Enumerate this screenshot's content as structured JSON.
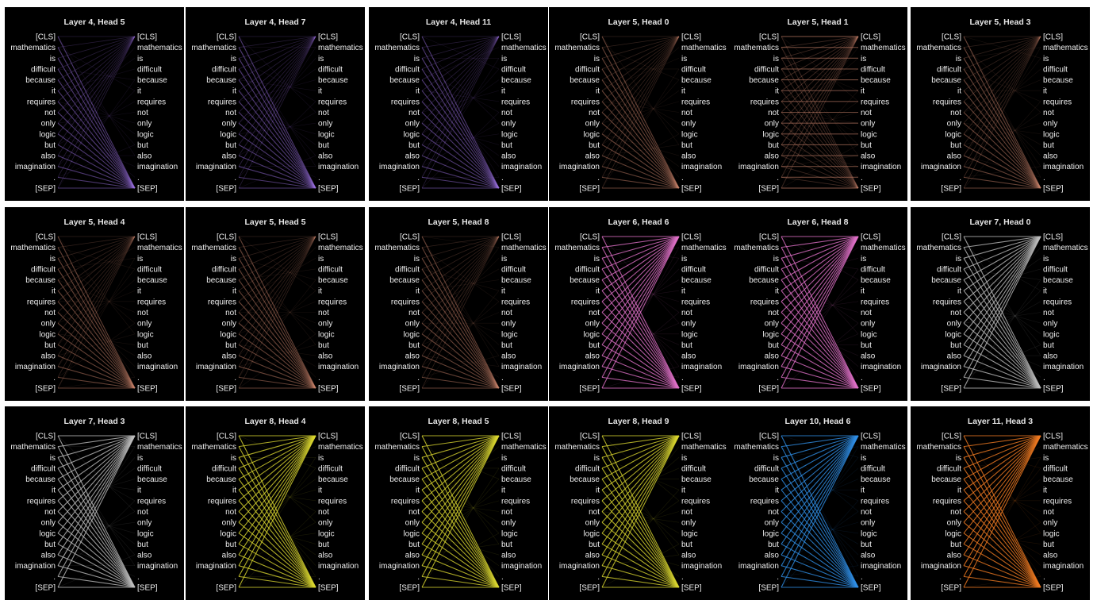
{
  "tokens": [
    "[CLS]",
    "mathematics",
    "is",
    "difficult",
    "because",
    "it",
    "requires",
    "not",
    "only",
    "logic",
    "but",
    "also",
    "imagination",
    ".",
    "[SEP]"
  ],
  "panels": [
    {
      "title": "Layer 4, Head 5",
      "color": "#9a6fe0",
      "pattern": "sep"
    },
    {
      "title": "Layer 4, Head 7",
      "color": "#9a6fe0",
      "pattern": "sep"
    },
    {
      "title": "Layer 4, Head 11",
      "color": "#9a6fe0",
      "pattern": "sep"
    },
    {
      "title": "Layer 5, Head 0",
      "color": "#c8826a",
      "pattern": "sep"
    },
    {
      "title": "Layer 5, Head 1",
      "color": "#c8826a",
      "pattern": "self"
    },
    {
      "title": "Layer 5, Head 3",
      "color": "#c8826a",
      "pattern": "sep"
    },
    {
      "title": "Layer 5, Head 4",
      "color": "#c8826a",
      "pattern": "sep"
    },
    {
      "title": "Layer 5, Head 5",
      "color": "#c8826a",
      "pattern": "sep"
    },
    {
      "title": "Layer 5, Head 8",
      "color": "#c8826a",
      "pattern": "sep"
    },
    {
      "title": "Layer 6, Head 6",
      "color": "#e070c8",
      "pattern": "both"
    },
    {
      "title": "Layer 6, Head 8",
      "color": "#e070c8",
      "pattern": "both"
    },
    {
      "title": "Layer 7, Head 0",
      "color": "#bdbdbd",
      "pattern": "both"
    },
    {
      "title": "Layer 7, Head 3",
      "color": "#bdbdbd",
      "pattern": "both"
    },
    {
      "title": "Layer 8, Head 4",
      "color": "#d8d430",
      "pattern": "both"
    },
    {
      "title": "Layer 8, Head 5",
      "color": "#d8d430",
      "pattern": "both"
    },
    {
      "title": "Layer 8, Head 9",
      "color": "#d8d430",
      "pattern": "both"
    },
    {
      "title": "Layer 10, Head 6",
      "color": "#2f8fe6",
      "pattern": "both"
    },
    {
      "title": "Layer 11, Head 3",
      "color": "#f07a22",
      "pattern": "both"
    }
  ]
}
